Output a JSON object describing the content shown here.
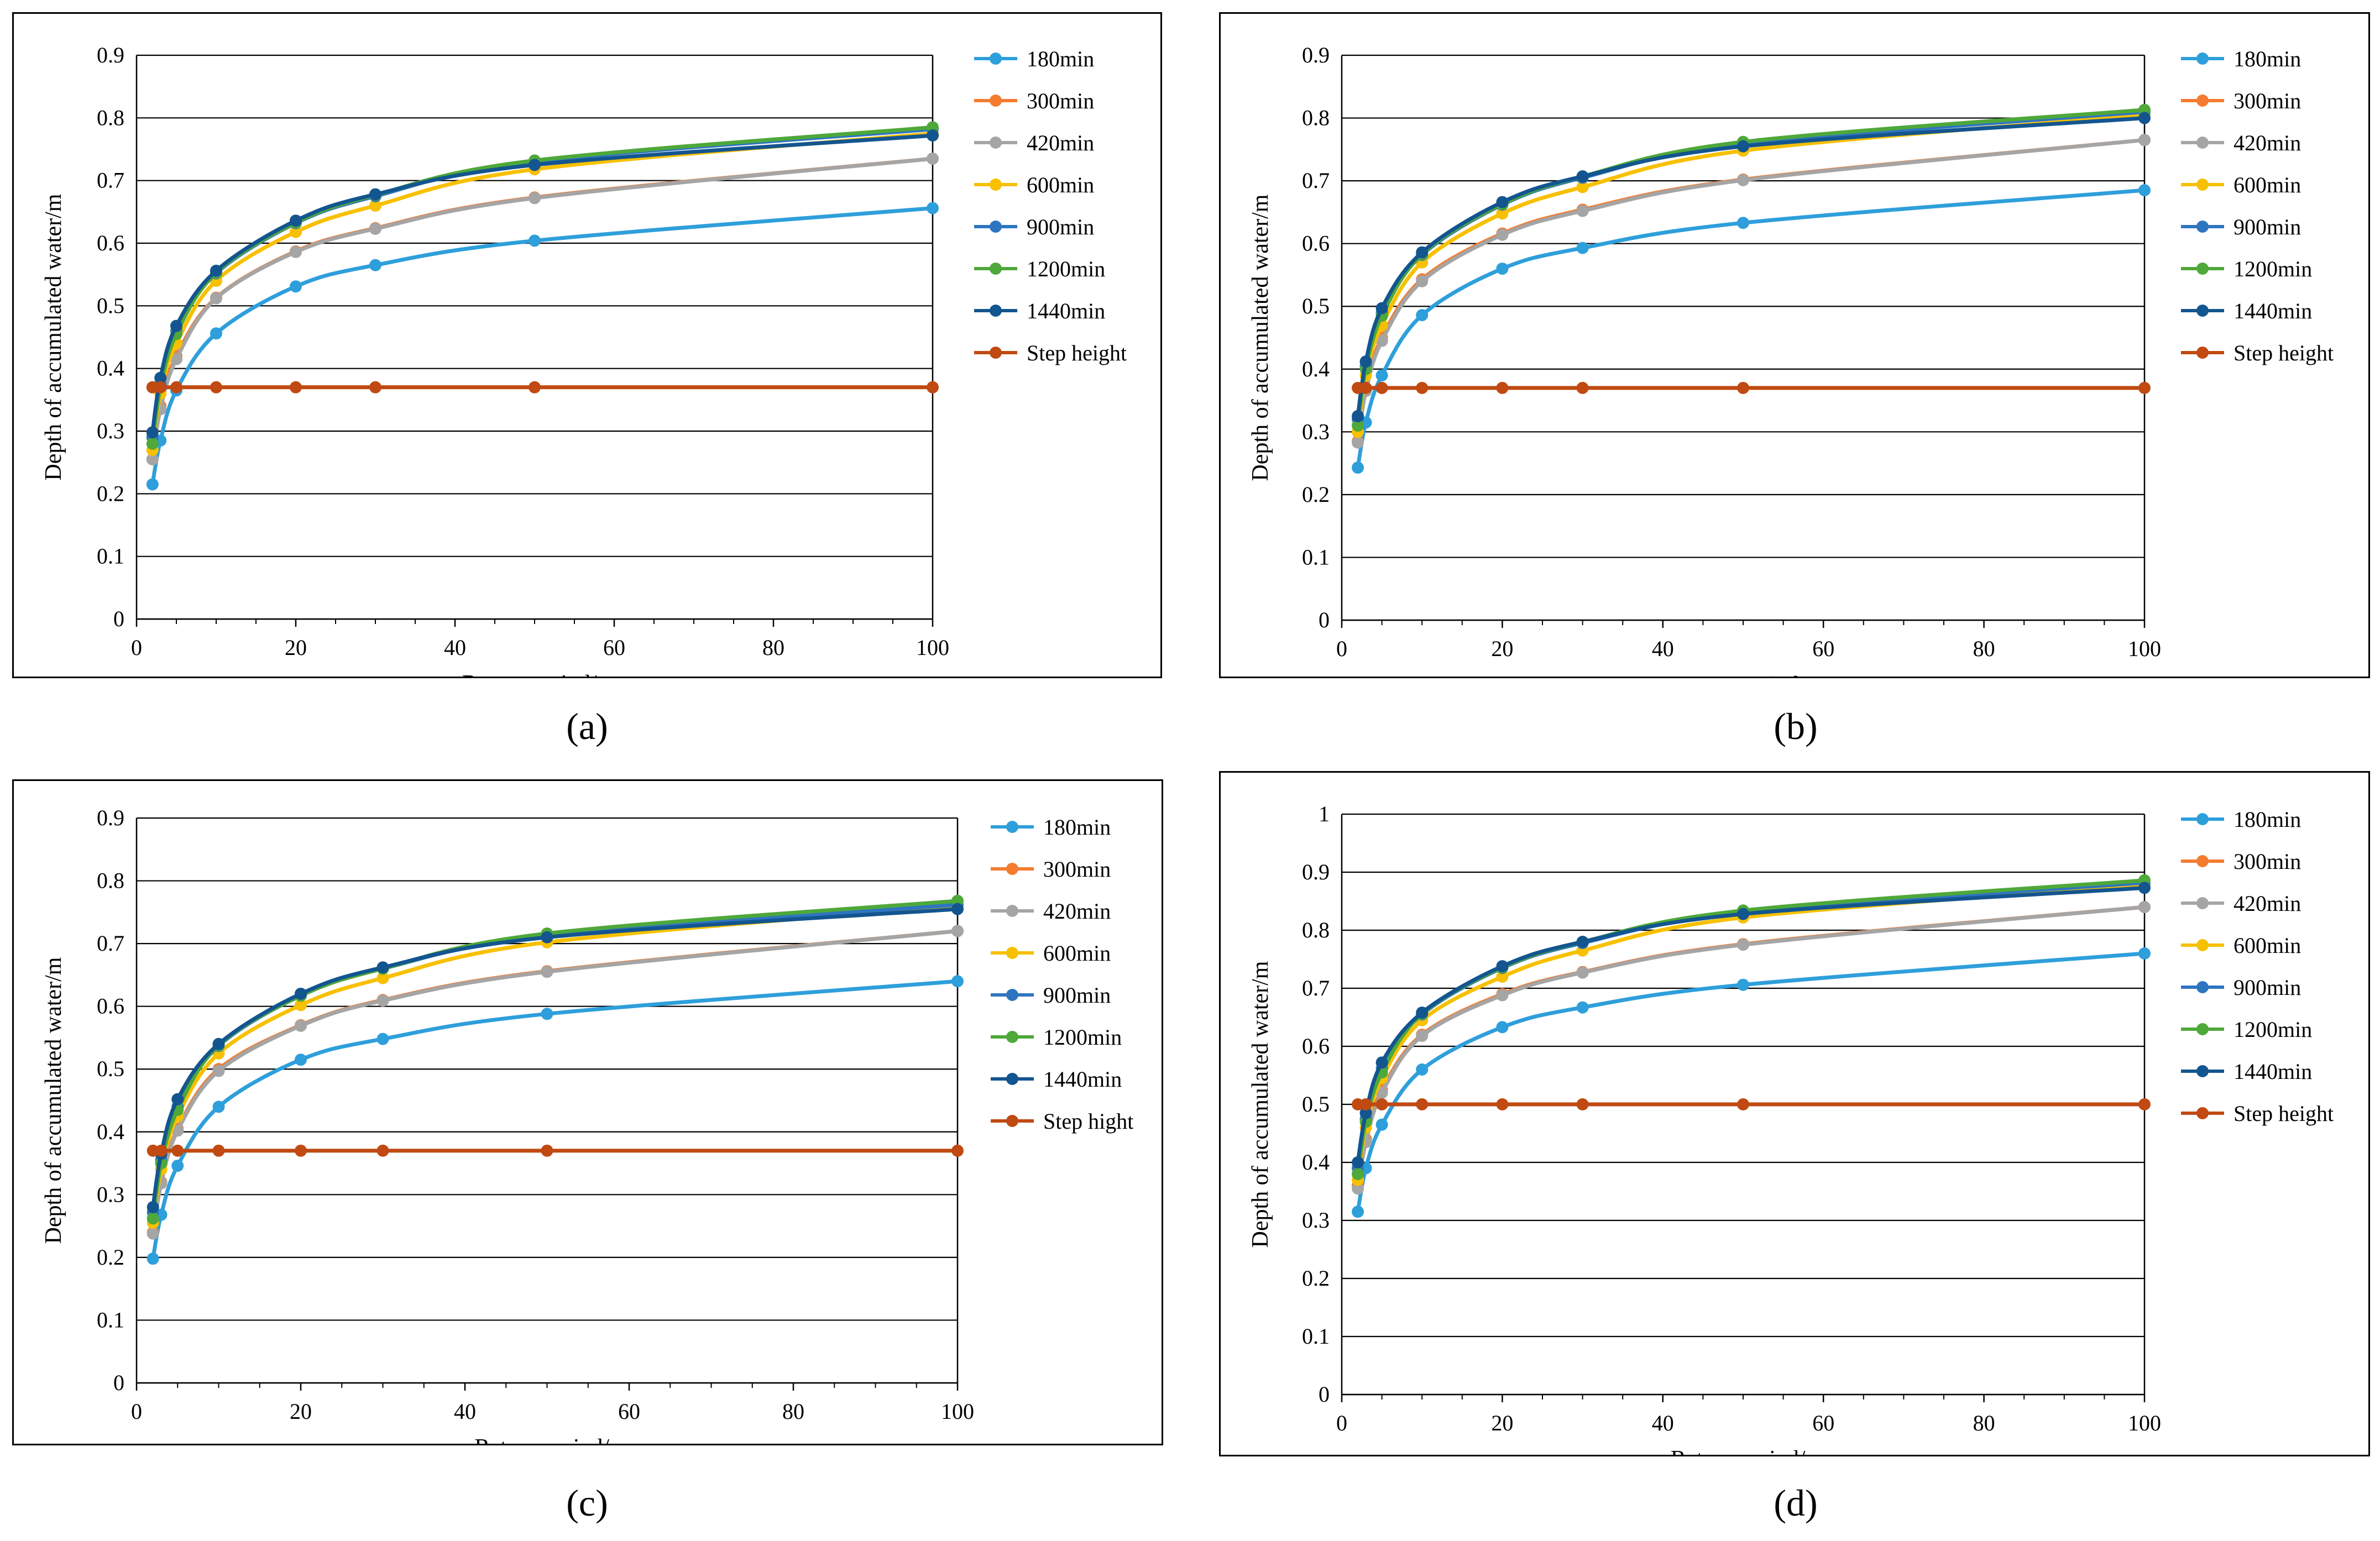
{
  "colors": {
    "180min": "#2E9FDB",
    "300min": "#F47C30",
    "420min": "#A5A5A5",
    "600min": "#F7C000",
    "900min": "#2E75C0",
    "1200min": "#4EA83A",
    "1440min": "#13558F",
    "step": "#C04A12"
  },
  "x_values": [
    2,
    3,
    5,
    10,
    20,
    30,
    50,
    100
  ],
  "chart_data": [
    {
      "type": "line",
      "panel": "a",
      "caption": "(a)",
      "xlabel": "Return period/a",
      "ylabel": "Depth of accumulated water/m",
      "xlim": [
        0,
        100
      ],
      "ylim": [
        0,
        0.9
      ],
      "xticks": [
        "0",
        "20",
        "40",
        "60",
        "80",
        "100"
      ],
      "yticks": [
        "0",
        "0.1",
        "0.2",
        "0.3",
        "0.4",
        "0.5",
        "0.6",
        "0.7",
        "0.8",
        "0.9"
      ],
      "x": [
        2,
        3,
        5,
        10,
        20,
        30,
        50,
        100
      ],
      "series": [
        {
          "name": "180min",
          "values": [
            0.215,
            0.285,
            0.365,
            0.456,
            0.531,
            0.565,
            0.604,
            0.656
          ]
        },
        {
          "name": "300min",
          "values": [
            0.255,
            0.34,
            0.42,
            0.513,
            0.587,
            0.624,
            0.673,
            0.735
          ]
        },
        {
          "name": "420min",
          "values": [
            0.255,
            0.335,
            0.415,
            0.512,
            0.586,
            0.623,
            0.672,
            0.735
          ]
        },
        {
          "name": "600min",
          "values": [
            0.27,
            0.36,
            0.44,
            0.54,
            0.618,
            0.66,
            0.718,
            0.775
          ]
        },
        {
          "name": "900min",
          "values": [
            0.29,
            0.375,
            0.46,
            0.552,
            0.632,
            0.675,
            0.73,
            0.782
          ]
        },
        {
          "name": "1200min",
          "values": [
            0.28,
            0.37,
            0.455,
            0.553,
            0.633,
            0.677,
            0.732,
            0.785
          ]
        },
        {
          "name": "1440min",
          "values": [
            0.298,
            0.385,
            0.468,
            0.556,
            0.636,
            0.678,
            0.725,
            0.772
          ]
        },
        {
          "name": "Step height",
          "values": [
            0.37,
            0.37,
            0.37,
            0.37,
            0.37,
            0.37,
            0.37,
            0.37
          ]
        }
      ]
    },
    {
      "type": "line",
      "panel": "b",
      "caption": "(b)",
      "xlabel": "Return period/a",
      "ylabel": "Depth of accumulated water/m",
      "xlim": [
        0,
        100
      ],
      "ylim": [
        0,
        0.9
      ],
      "xticks": [
        "0",
        "20",
        "40",
        "60",
        "80",
        "100"
      ],
      "yticks": [
        "0",
        "0.1",
        "0.2",
        "0.3",
        "0.4",
        "0.5",
        "0.6",
        "0.7",
        "0.8",
        "0.9"
      ],
      "x": [
        2,
        3,
        5,
        10,
        20,
        30,
        50,
        100
      ],
      "series": [
        {
          "name": "180min",
          "values": [
            0.243,
            0.315,
            0.39,
            0.486,
            0.56,
            0.593,
            0.633,
            0.685
          ]
        },
        {
          "name": "300min",
          "values": [
            0.285,
            0.37,
            0.45,
            0.543,
            0.616,
            0.654,
            0.702,
            0.765
          ]
        },
        {
          "name": "420min",
          "values": [
            0.283,
            0.365,
            0.445,
            0.54,
            0.614,
            0.652,
            0.701,
            0.765
          ]
        },
        {
          "name": "600min",
          "values": [
            0.3,
            0.39,
            0.47,
            0.57,
            0.648,
            0.69,
            0.748,
            0.805
          ]
        },
        {
          "name": "900min",
          "values": [
            0.32,
            0.405,
            0.49,
            0.582,
            0.662,
            0.705,
            0.758,
            0.81
          ]
        },
        {
          "name": "1200min",
          "values": [
            0.31,
            0.4,
            0.485,
            0.583,
            0.663,
            0.707,
            0.762,
            0.813
          ]
        },
        {
          "name": "1440min",
          "values": [
            0.325,
            0.412,
            0.497,
            0.586,
            0.666,
            0.707,
            0.755,
            0.8
          ]
        },
        {
          "name": "Step height",
          "values": [
            0.37,
            0.37,
            0.37,
            0.37,
            0.37,
            0.37,
            0.37,
            0.37
          ]
        }
      ]
    },
    {
      "type": "line",
      "panel": "c",
      "caption": "(c)",
      "xlabel": "Return period/a",
      "ylabel": "Depth of accumulated water/m",
      "xlim": [
        0,
        100
      ],
      "ylim": [
        0,
        0.9
      ],
      "xticks": [
        "0",
        "20",
        "40",
        "60",
        "80",
        "100"
      ],
      "yticks": [
        "0",
        "0.1",
        "0.2",
        "0.3",
        "0.4",
        "0.5",
        "0.6",
        "0.7",
        "0.8",
        "0.9"
      ],
      "x": [
        2,
        3,
        5,
        10,
        20,
        30,
        50,
        100
      ],
      "series": [
        {
          "name": "180min",
          "values": [
            0.198,
            0.268,
            0.346,
            0.44,
            0.515,
            0.548,
            0.588,
            0.64
          ]
        },
        {
          "name": "300min",
          "values": [
            0.24,
            0.32,
            0.405,
            0.5,
            0.57,
            0.61,
            0.656,
            0.72
          ]
        },
        {
          "name": "420min",
          "values": [
            0.238,
            0.318,
            0.402,
            0.497,
            0.569,
            0.609,
            0.655,
            0.72
          ]
        },
        {
          "name": "600min",
          "values": [
            0.255,
            0.34,
            0.425,
            0.525,
            0.602,
            0.645,
            0.702,
            0.76
          ]
        },
        {
          "name": "900min",
          "values": [
            0.272,
            0.355,
            0.44,
            0.537,
            0.617,
            0.66,
            0.712,
            0.762
          ]
        },
        {
          "name": "1200min",
          "values": [
            0.262,
            0.35,
            0.435,
            0.538,
            0.617,
            0.66,
            0.716,
            0.768
          ]
        },
        {
          "name": "1440min",
          "values": [
            0.28,
            0.365,
            0.452,
            0.54,
            0.62,
            0.662,
            0.71,
            0.755
          ]
        },
        {
          "name": "Step hight",
          "values": [
            0.37,
            0.37,
            0.37,
            0.37,
            0.37,
            0.37,
            0.37,
            0.37
          ]
        }
      ]
    },
    {
      "type": "line",
      "panel": "d",
      "caption": "(d)",
      "xlabel": "Return period/a",
      "ylabel": "Depth of accumulated water/m",
      "xlim": [
        0,
        100
      ],
      "ylim": [
        0,
        1
      ],
      "xticks": [
        "0",
        "20",
        "40",
        "60",
        "80",
        "100"
      ],
      "yticks": [
        "0",
        "0.1",
        "0.2",
        "0.3",
        "0.4",
        "0.5",
        "0.6",
        "0.7",
        "0.8",
        "0.9",
        "1"
      ],
      "x": [
        2,
        3,
        5,
        10,
        20,
        30,
        50,
        100
      ],
      "series": [
        {
          "name": "180min",
          "values": [
            0.315,
            0.39,
            0.465,
            0.56,
            0.633,
            0.667,
            0.706,
            0.76
          ]
        },
        {
          "name": "300min",
          "values": [
            0.36,
            0.44,
            0.525,
            0.62,
            0.69,
            0.728,
            0.776,
            0.84
          ]
        },
        {
          "name": "420min",
          "values": [
            0.355,
            0.435,
            0.52,
            0.618,
            0.688,
            0.727,
            0.775,
            0.84
          ]
        },
        {
          "name": "600min",
          "values": [
            0.37,
            0.46,
            0.545,
            0.645,
            0.72,
            0.765,
            0.822,
            0.878
          ]
        },
        {
          "name": "900min",
          "values": [
            0.39,
            0.475,
            0.562,
            0.655,
            0.735,
            0.778,
            0.83,
            0.882
          ]
        },
        {
          "name": "1200min",
          "values": [
            0.38,
            0.47,
            0.555,
            0.656,
            0.736,
            0.78,
            0.834,
            0.886
          ]
        },
        {
          "name": "1440min",
          "values": [
            0.4,
            0.485,
            0.572,
            0.658,
            0.738,
            0.78,
            0.828,
            0.873
          ]
        },
        {
          "name": "Step height",
          "values": [
            0.5,
            0.5,
            0.5,
            0.5,
            0.5,
            0.5,
            0.5,
            0.5
          ]
        }
      ]
    }
  ]
}
